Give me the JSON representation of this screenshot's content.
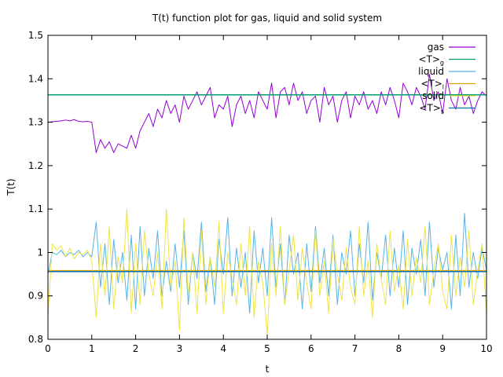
{
  "chart_data": {
    "type": "line",
    "title": "T(t) function plot for gas, liquid and solid system",
    "xlabel": "t",
    "ylabel": "T(t)",
    "xlim": [
      0,
      10
    ],
    "ylim": [
      0.8,
      1.5
    ],
    "xticks": [
      "0",
      "1",
      "2",
      "3",
      "4",
      "5",
      "6",
      "7",
      "8",
      "9",
      "10"
    ],
    "yticks": [
      "0.8",
      "0.9",
      "1",
      "1.1",
      "1.2",
      "1.3",
      "1.4",
      "1.5"
    ],
    "grid": false,
    "legend_position": "top-right",
    "legend": [
      {
        "label": "gas",
        "sub": "",
        "color": "#9400d3"
      },
      {
        "label": "<T>",
        "sub": "g",
        "color": "#009e73"
      },
      {
        "label": "liquid",
        "sub": "",
        "color": "#56b4e9"
      },
      {
        "label": "<T>",
        "sub": "l",
        "color": "#e69f00"
      },
      {
        "label": "solid",
        "sub": "",
        "color": "#f0e442"
      },
      {
        "label": "<T>",
        "sub": "s",
        "color": "#0072b2"
      }
    ],
    "series": [
      {
        "name": "gas",
        "color": "#9400d3",
        "x": [
          0,
          0.1,
          0.2,
          0.3,
          0.4,
          0.5,
          0.6,
          0.7,
          0.8,
          0.9,
          1.0,
          1.1,
          1.2,
          1.3,
          1.4,
          1.5,
          1.6,
          1.7,
          1.8,
          1.9,
          2.0,
          2.1,
          2.2,
          2.3,
          2.4,
          2.5,
          2.6,
          2.7,
          2.8,
          2.9,
          3.0,
          3.1,
          3.2,
          3.3,
          3.4,
          3.5,
          3.6,
          3.7,
          3.8,
          3.9,
          4.0,
          4.1,
          4.2,
          4.3,
          4.4,
          4.5,
          4.6,
          4.7,
          4.8,
          4.9,
          5.0,
          5.1,
          5.2,
          5.3,
          5.4,
          5.5,
          5.6,
          5.7,
          5.8,
          5.9,
          6.0,
          6.1,
          6.2,
          6.3,
          6.4,
          6.5,
          6.6,
          6.7,
          6.8,
          6.9,
          7.0,
          7.1,
          7.2,
          7.3,
          7.4,
          7.5,
          7.6,
          7.7,
          7.8,
          7.9,
          8.0,
          8.1,
          8.2,
          8.3,
          8.4,
          8.5,
          8.6,
          8.7,
          8.8,
          8.9,
          9.0,
          9.1,
          9.2,
          9.3,
          9.4,
          9.5,
          9.6,
          9.7,
          9.8,
          9.9,
          10.0
        ],
        "values": [
          1.3,
          1.301,
          1.302,
          1.303,
          1.305,
          1.303,
          1.306,
          1.302,
          1.301,
          1.302,
          1.3,
          1.23,
          1.26,
          1.24,
          1.255,
          1.23,
          1.25,
          1.245,
          1.24,
          1.27,
          1.24,
          1.28,
          1.3,
          1.32,
          1.29,
          1.33,
          1.31,
          1.35,
          1.32,
          1.34,
          1.3,
          1.36,
          1.33,
          1.35,
          1.37,
          1.34,
          1.36,
          1.38,
          1.31,
          1.34,
          1.33,
          1.36,
          1.29,
          1.34,
          1.36,
          1.32,
          1.35,
          1.31,
          1.37,
          1.35,
          1.33,
          1.39,
          1.31,
          1.37,
          1.38,
          1.34,
          1.39,
          1.35,
          1.37,
          1.32,
          1.35,
          1.36,
          1.3,
          1.38,
          1.34,
          1.36,
          1.3,
          1.35,
          1.37,
          1.31,
          1.36,
          1.34,
          1.37,
          1.33,
          1.35,
          1.32,
          1.37,
          1.34,
          1.38,
          1.35,
          1.31,
          1.39,
          1.37,
          1.34,
          1.38,
          1.36,
          1.33,
          1.41,
          1.35,
          1.37,
          1.32,
          1.4,
          1.35,
          1.33,
          1.38,
          1.34,
          1.36,
          1.32,
          1.35,
          1.37,
          1.36
        ]
      },
      {
        "name": "<T>g",
        "color": "#009e73",
        "x": [
          0,
          10
        ],
        "values": [
          1.363,
          1.363
        ]
      },
      {
        "name": "liquid",
        "color": "#56b4e9",
        "x": [
          0,
          0.1,
          0.2,
          0.3,
          0.4,
          0.5,
          0.6,
          0.7,
          0.8,
          0.9,
          1.0,
          1.1,
          1.2,
          1.3,
          1.4,
          1.5,
          1.6,
          1.7,
          1.8,
          1.9,
          2.0,
          2.1,
          2.2,
          2.3,
          2.4,
          2.5,
          2.6,
          2.7,
          2.8,
          2.9,
          3.0,
          3.1,
          3.2,
          3.3,
          3.4,
          3.5,
          3.6,
          3.7,
          3.8,
          3.9,
          4.0,
          4.1,
          4.2,
          4.3,
          4.4,
          4.5,
          4.6,
          4.7,
          4.8,
          4.9,
          5.0,
          5.1,
          5.2,
          5.3,
          5.4,
          5.5,
          5.6,
          5.7,
          5.8,
          5.9,
          6.0,
          6.1,
          6.2,
          6.3,
          6.4,
          6.5,
          6.6,
          6.7,
          6.8,
          6.9,
          7.0,
          7.1,
          7.2,
          7.3,
          7.4,
          7.5,
          7.6,
          7.7,
          7.8,
          7.9,
          8.0,
          8.1,
          8.2,
          8.3,
          8.4,
          8.5,
          8.6,
          8.7,
          8.8,
          8.9,
          9.0,
          9.1,
          9.2,
          9.3,
          9.4,
          9.5,
          9.6,
          9.7,
          9.8,
          9.9,
          10.0
        ],
        "values": [
          0.95,
          1.0,
          0.995,
          1.005,
          0.99,
          1.0,
          0.995,
          1.005,
          0.99,
          1.0,
          0.99,
          1.07,
          0.92,
          1.02,
          0.88,
          1.03,
          0.93,
          1.0,
          0.89,
          1.04,
          0.87,
          1.06,
          0.9,
          1.01,
          0.94,
          1.05,
          0.9,
          0.98,
          0.91,
          1.02,
          0.92,
          1.05,
          0.88,
          1.0,
          0.94,
          1.07,
          0.91,
          0.99,
          0.88,
          1.03,
          0.95,
          1.08,
          0.9,
          1.01,
          0.92,
          1.0,
          0.86,
          1.05,
          0.93,
          1.01,
          0.9,
          1.08,
          0.92,
          1.02,
          0.88,
          1.04,
          0.95,
          1.0,
          0.87,
          1.02,
          0.91,
          1.06,
          0.93,
          1.01,
          0.9,
          1.04,
          0.88,
          1.0,
          0.95,
          1.05,
          0.9,
          1.02,
          0.93,
          1.07,
          0.89,
          1.0,
          0.94,
          1.04,
          0.9,
          1.01,
          0.92,
          1.05,
          0.88,
          1.01,
          0.95,
          1.03,
          0.9,
          1.07,
          0.92,
          1.01,
          0.96,
          1.0,
          0.87,
          1.04,
          0.9,
          1.09,
          0.92,
          1.0,
          0.94,
          1.01,
          0.96
        ]
      },
      {
        "name": "<T>l",
        "color": "#e69f00",
        "x": [
          0,
          10
        ],
        "values": [
          0.958,
          0.958
        ]
      },
      {
        "name": "solid",
        "color": "#f0e442",
        "x": [
          0,
          0.1,
          0.2,
          0.3,
          0.4,
          0.5,
          0.6,
          0.7,
          0.8,
          0.9,
          1.0,
          1.1,
          1.2,
          1.3,
          1.4,
          1.5,
          1.6,
          1.7,
          1.8,
          1.9,
          2.0,
          2.1,
          2.2,
          2.3,
          2.4,
          2.5,
          2.6,
          2.7,
          2.8,
          2.9,
          3.0,
          3.1,
          3.2,
          3.3,
          3.4,
          3.5,
          3.6,
          3.7,
          3.8,
          3.9,
          4.0,
          4.1,
          4.2,
          4.3,
          4.4,
          4.5,
          4.6,
          4.7,
          4.8,
          4.9,
          5.0,
          5.1,
          5.2,
          5.3,
          5.4,
          5.5,
          5.6,
          5.7,
          5.8,
          5.9,
          6.0,
          6.1,
          6.2,
          6.3,
          6.4,
          6.5,
          6.6,
          6.7,
          6.8,
          6.9,
          7.0,
          7.1,
          7.2,
          7.3,
          7.4,
          7.5,
          7.6,
          7.7,
          7.8,
          7.9,
          8.0,
          8.1,
          8.2,
          8.3,
          8.4,
          8.5,
          8.6,
          8.7,
          8.8,
          8.9,
          9.0,
          9.1,
          9.2,
          9.3,
          9.4,
          9.5,
          9.6,
          9.7,
          9.8,
          9.9,
          10.0
        ],
        "values": [
          0.85,
          1.02,
          1.005,
          1.015,
          0.99,
          1.01,
          0.985,
          1.0,
          0.995,
          1.005,
          0.98,
          0.85,
          1.02,
          0.9,
          1.06,
          0.87,
          0.99,
          0.93,
          1.1,
          0.86,
          1.02,
          0.88,
          1.05,
          0.95,
          0.9,
          1.0,
          0.87,
          1.1,
          0.92,
          0.98,
          0.82,
          1.08,
          0.9,
          1.0,
          0.86,
          1.05,
          0.88,
          0.99,
          0.92,
          1.07,
          0.86,
          1.0,
          0.94,
          0.88,
          1.02,
          0.9,
          1.06,
          0.85,
          0.98,
          0.93,
          0.81,
          1.02,
          0.9,
          1.06,
          0.88,
          0.96,
          1.04,
          0.89,
          1.01,
          0.93,
          0.87,
          1.05,
          0.9,
          0.98,
          0.86,
          1.03,
          0.95,
          0.89,
          1.01,
          0.92,
          0.88,
          1.06,
          0.9,
          0.98,
          0.85,
          1.02,
          0.94,
          0.88,
          1.05,
          0.91,
          0.97,
          0.87,
          1.03,
          0.9,
          0.99,
          0.93,
          1.06,
          0.88,
          0.96,
          1.02,
          0.91,
          0.87,
          1.04,
          0.9,
          0.99,
          0.92,
          1.05,
          0.88,
          0.96,
          1.02,
          0.86
        ]
      },
      {
        "name": "<T>s",
        "color": "#0072b2",
        "x": [
          0,
          10
        ],
        "values": [
          0.956,
          0.956
        ]
      }
    ]
  }
}
